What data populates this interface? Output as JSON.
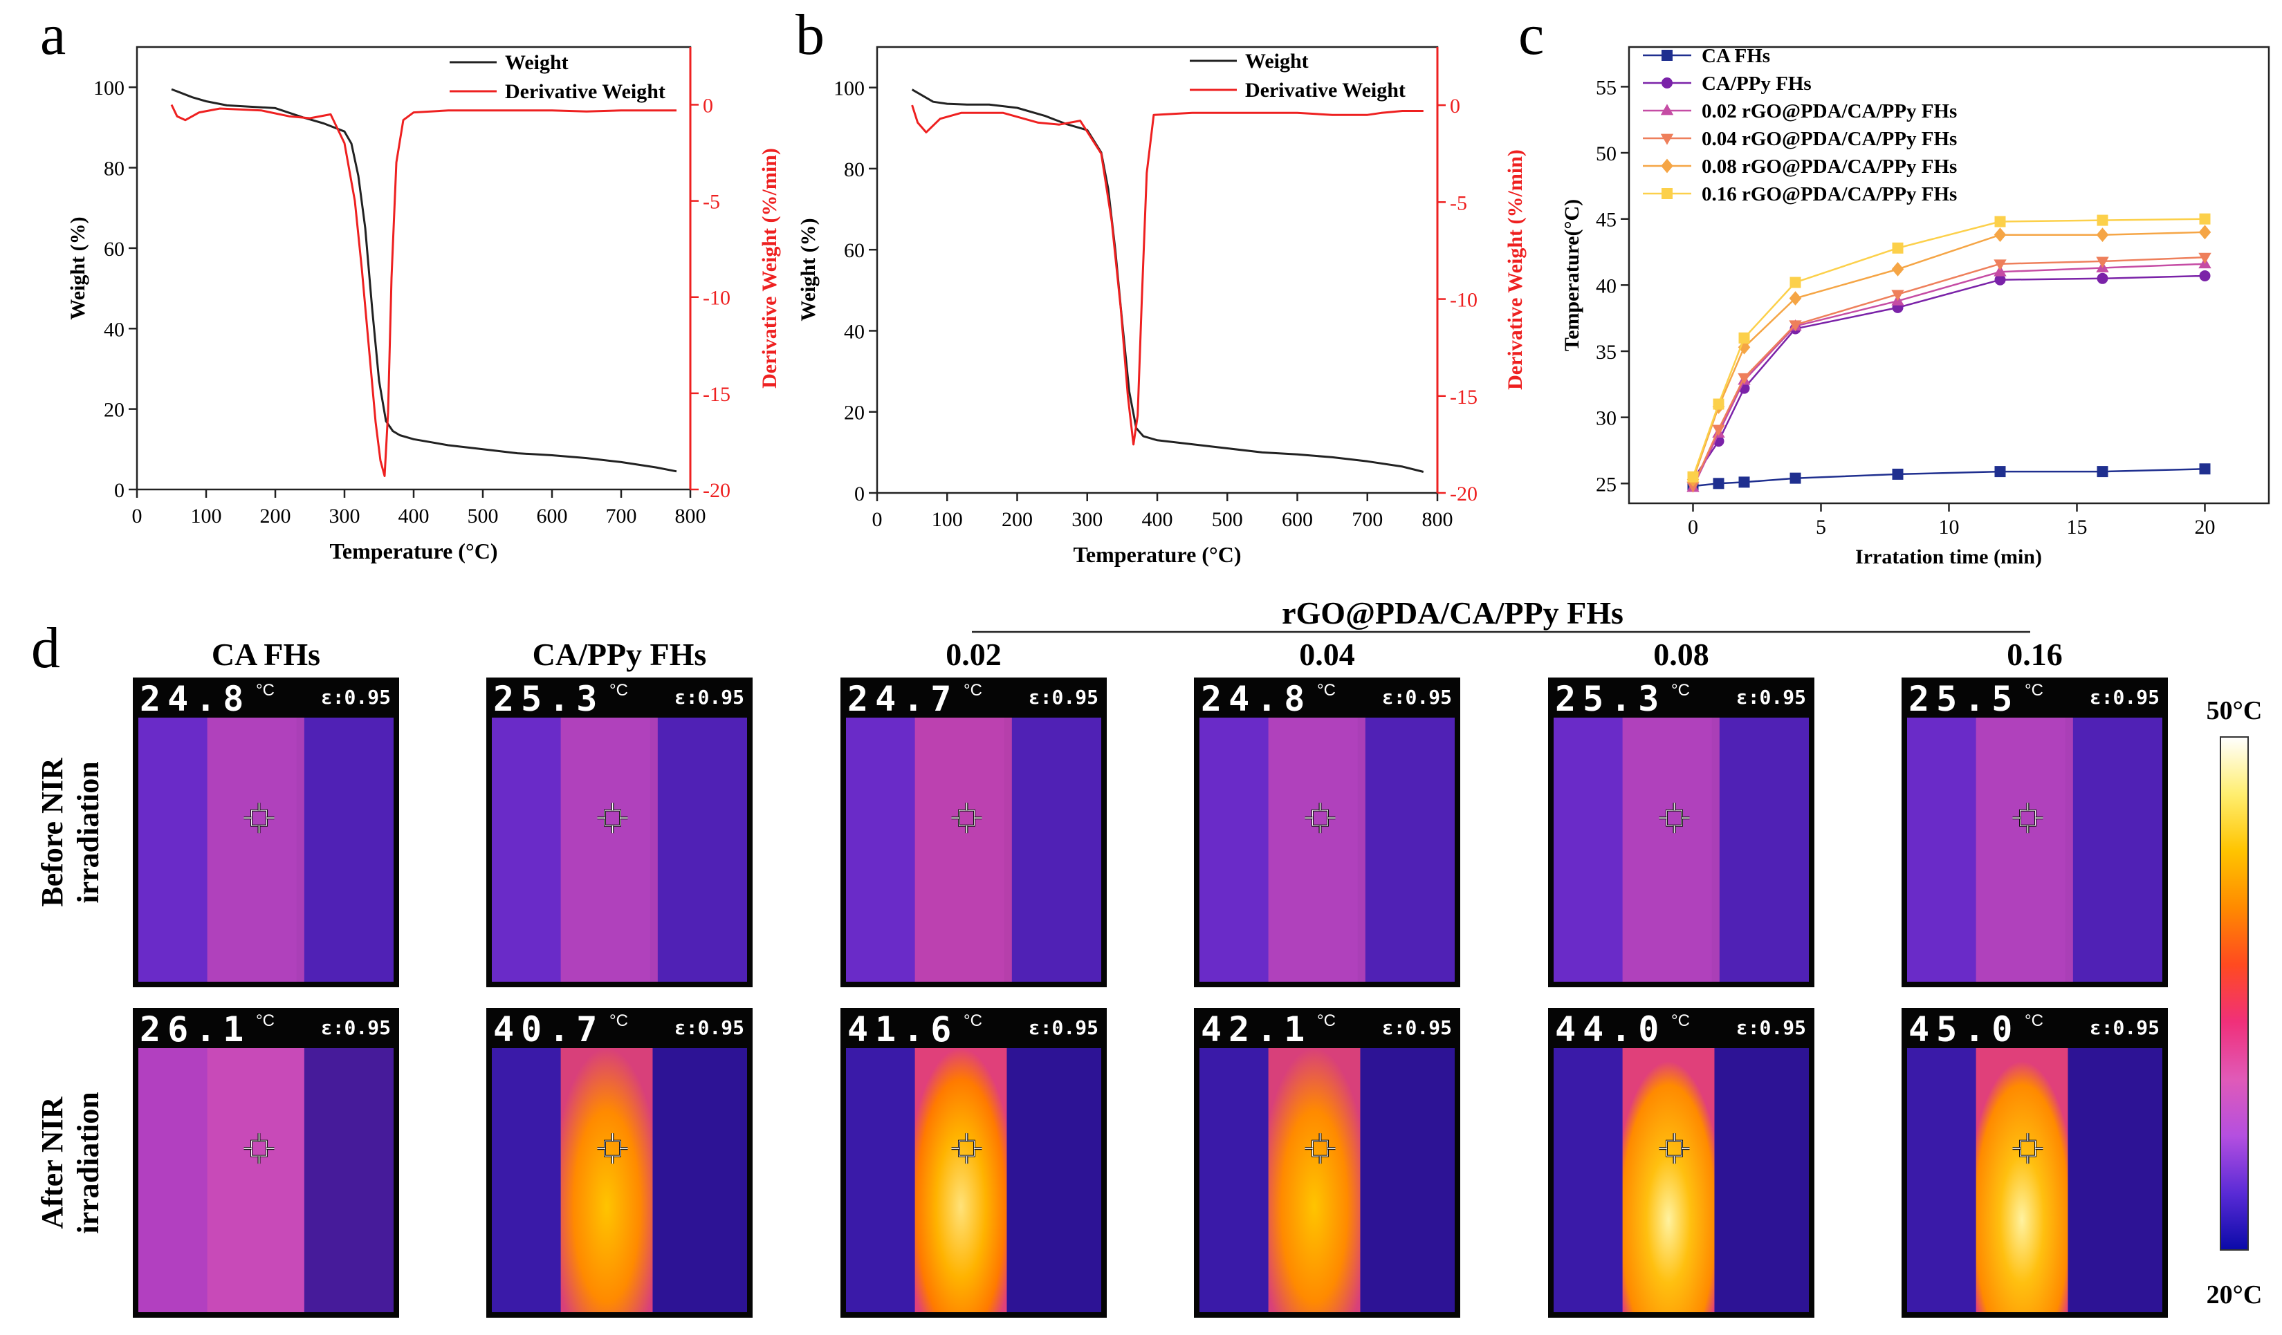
{
  "panels": {
    "a": {
      "letter": "a",
      "xlabel": "Temperature (°C)",
      "ylabel_left": "Weight (%)",
      "ylabel_right": "Derivative Weight (%/min)",
      "xticks": [
        0,
        100,
        200,
        300,
        400,
        500,
        600,
        700,
        800
      ],
      "yticks_left": [
        0,
        20,
        40,
        60,
        80,
        100
      ],
      "yticks_right": [
        0,
        -5,
        -10,
        -15,
        -20
      ],
      "legend": [
        "Weight",
        "Derivative Weight"
      ]
    },
    "b": {
      "letter": "b",
      "xlabel": "Temperature (°C)",
      "ylabel_left": "Weight (%)",
      "ylabel_right": "Derivative Weight (%/min)",
      "xticks": [
        0,
        100,
        200,
        300,
        400,
        500,
        600,
        700,
        800
      ],
      "yticks_left": [
        0,
        20,
        40,
        60,
        80,
        100
      ],
      "yticks_right": [
        0,
        -5,
        -10,
        -15,
        -20
      ],
      "legend": [
        "Weight",
        "Derivative Weight"
      ]
    },
    "c": {
      "letter": "c",
      "xlabel": "Irratation time (min)",
      "ylabel": "Temperature(°C)",
      "xticks": [
        0,
        5,
        10,
        15,
        20
      ],
      "yticks": [
        25,
        30,
        35,
        40,
        45,
        50,
        55
      ]
    },
    "d": {
      "letter": "d",
      "group_title": "rGO@PDA/CA/PPy FHs",
      "column_titles": [
        "CA FHs",
        "CA/PPy FHs",
        "0.02",
        "0.04",
        "0.08",
        "0.16"
      ],
      "row_labels": [
        [
          "Before NIR",
          "irradiation"
        ],
        [
          "After NIR",
          "irradiation"
        ]
      ],
      "temp_unit": "°C",
      "emissivity": "ε:0.95",
      "before_temps": [
        "24.8",
        "25.3",
        "24.7",
        "24.8",
        "25.3",
        "25.5"
      ],
      "after_temps": [
        "26.1",
        "40.7",
        "41.6",
        "42.1",
        "44.0",
        "45.0"
      ],
      "colorbar_max": "50°C",
      "colorbar_min": "20°C",
      "colormap": [
        "#0a0aa8",
        "#5a2bd6",
        "#b44fe0",
        "#e05ab8",
        "#f0307a",
        "#ff4a20",
        "#ff8a00",
        "#ffc400",
        "#ffee70",
        "#ffffff"
      ]
    }
  },
  "chart_data": [
    {
      "panel": "a",
      "type": "line",
      "xlim": [
        0,
        800
      ],
      "ylim_left": [
        0,
        110
      ],
      "ylim_right": [
        -20,
        3
      ],
      "series": [
        {
          "name": "Weight",
          "axis": "left",
          "color": "#222222",
          "x": [
            50,
            80,
            100,
            130,
            160,
            200,
            240,
            270,
            300,
            310,
            320,
            330,
            340,
            350,
            360,
            370,
            380,
            400,
            450,
            500,
            550,
            600,
            650,
            700,
            750,
            780
          ],
          "y": [
            99.5,
            97.5,
            96.5,
            95.5,
            95.2,
            94.8,
            92.5,
            91.0,
            89.0,
            86.0,
            78.0,
            65.0,
            45.0,
            27.0,
            17.0,
            14.5,
            13.5,
            12.5,
            11.0,
            10.0,
            9.0,
            8.5,
            7.8,
            6.8,
            5.5,
            4.5
          ]
        },
        {
          "name": "Derivative Weight",
          "axis": "right",
          "color": "#ee2020",
          "x": [
            50,
            58,
            70,
            90,
            120,
            180,
            220,
            250,
            280,
            300,
            315,
            325,
            335,
            345,
            352,
            358,
            363,
            368,
            375,
            385,
            400,
            450,
            500,
            550,
            600,
            650,
            700,
            750,
            780
          ],
          "y": [
            0.0,
            -0.6,
            -0.8,
            -0.4,
            -0.2,
            -0.3,
            -0.6,
            -0.7,
            -0.5,
            -2.0,
            -5.0,
            -8.5,
            -12.5,
            -16.5,
            -18.5,
            -19.3,
            -16.0,
            -9.0,
            -3.0,
            -0.8,
            -0.4,
            -0.3,
            -0.3,
            -0.3,
            -0.3,
            -0.35,
            -0.3,
            -0.3,
            -0.3
          ]
        }
      ]
    },
    {
      "panel": "b",
      "type": "line",
      "xlim": [
        0,
        800
      ],
      "ylim_left": [
        0,
        110
      ],
      "ylim_right": [
        -20,
        3
      ],
      "series": [
        {
          "name": "Weight",
          "axis": "left",
          "color": "#222222",
          "x": [
            50,
            80,
            100,
            130,
            160,
            200,
            240,
            270,
            300,
            320,
            330,
            340,
            350,
            360,
            370,
            380,
            400,
            450,
            500,
            550,
            600,
            650,
            700,
            750,
            780
          ],
          "y": [
            99.5,
            96.5,
            96.0,
            95.8,
            95.8,
            95.0,
            93.0,
            91.0,
            89.5,
            84.0,
            75.0,
            60.0,
            42.0,
            25.0,
            16.0,
            14.0,
            13.0,
            12.0,
            11.0,
            10.0,
            9.5,
            8.8,
            7.8,
            6.5,
            5.2
          ]
        },
        {
          "name": "Derivative Weight",
          "axis": "right",
          "color": "#ee2020",
          "x": [
            50,
            58,
            70,
            90,
            120,
            180,
            230,
            260,
            290,
            320,
            335,
            348,
            358,
            366,
            372,
            378,
            385,
            395,
            450,
            500,
            550,
            600,
            650,
            700,
            720,
            750,
            780
          ],
          "y": [
            0.0,
            -0.9,
            -1.4,
            -0.7,
            -0.4,
            -0.4,
            -0.9,
            -1.0,
            -0.8,
            -2.5,
            -6.0,
            -10.5,
            -15.0,
            -17.5,
            -16.0,
            -10.0,
            -3.5,
            -0.5,
            -0.4,
            -0.4,
            -0.4,
            -0.4,
            -0.5,
            -0.5,
            -0.4,
            -0.3,
            -0.3
          ]
        }
      ]
    },
    {
      "panel": "c",
      "type": "line",
      "xlim": [
        -2.5,
        22.5
      ],
      "ylim": [
        23.5,
        58
      ],
      "x": [
        0,
        1,
        2,
        4,
        8,
        12,
        16,
        20
      ],
      "series": [
        {
          "name": "CA FHs",
          "color": "#1f2f8f",
          "marker": "square",
          "values": [
            24.8,
            25.0,
            25.1,
            25.4,
            25.7,
            25.9,
            25.9,
            26.1
          ]
        },
        {
          "name": "CA/PPy FHs",
          "color": "#7a22a8",
          "marker": "circle",
          "values": [
            25.3,
            28.2,
            32.2,
            36.7,
            38.3,
            40.4,
            40.5,
            40.7
          ]
        },
        {
          "name": "0.02 rGO@PDA/CA/PPy FHs",
          "color": "#c54ca4",
          "marker": "triangle-up",
          "values": [
            24.7,
            28.8,
            32.8,
            36.9,
            38.8,
            41.0,
            41.3,
            41.6
          ]
        },
        {
          "name": "0.04 rGO@PDA/CA/PPy FHs",
          "color": "#ee7f5b",
          "marker": "triangle-down",
          "values": [
            24.8,
            29.1,
            33.0,
            37.0,
            39.3,
            41.6,
            41.8,
            42.1
          ]
        },
        {
          "name": "0.08 rGO@PDA/CA/PPy FHs",
          "color": "#f5a545",
          "marker": "diamond",
          "values": [
            25.3,
            30.8,
            35.3,
            39.0,
            41.2,
            43.8,
            43.8,
            44.0
          ]
        },
        {
          "name": "0.16 rGO@PDA/CA/PPy FHs",
          "color": "#fcd04a",
          "marker": "square",
          "values": [
            25.5,
            31.0,
            36.0,
            40.2,
            42.8,
            44.8,
            44.9,
            45.0
          ]
        }
      ]
    }
  ]
}
